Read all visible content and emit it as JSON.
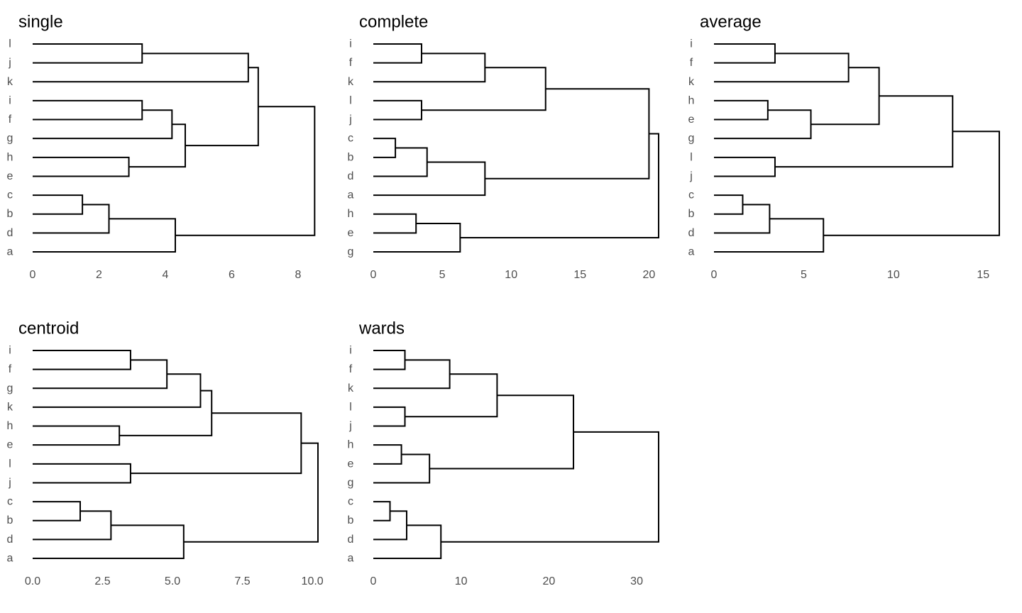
{
  "chart_data": [
    {
      "type": "dendrogram",
      "title": "single",
      "leaves": [
        "l",
        "j",
        "k",
        "i",
        "f",
        "g",
        "h",
        "e",
        "c",
        "b",
        "d",
        "a"
      ],
      "xlim": [
        0,
        8.6
      ],
      "ticks": [
        0,
        2,
        4,
        6,
        8
      ],
      "tick_labels": [
        "0",
        "2",
        "4",
        "6",
        "8"
      ],
      "merges": [
        {
          "a": "L:c",
          "b": "L:b",
          "h": 1.5
        },
        {
          "a": "L:l",
          "b": "L:j",
          "h": 3.3
        },
        {
          "a": "L:i",
          "b": "L:f",
          "h": 3.3
        },
        {
          "a": "L:h",
          "b": "L:e",
          "h": 2.9
        },
        {
          "a": "N:0",
          "b": "L:d",
          "h": 2.3
        },
        {
          "a": "N:2",
          "b": "L:g",
          "h": 4.2
        },
        {
          "a": "N:4",
          "b": "L:a",
          "h": 4.3
        },
        {
          "a": "N:5",
          "b": "N:3",
          "h": 4.6
        },
        {
          "a": "N:1",
          "b": "L:k",
          "h": 6.5
        },
        {
          "a": "N:8",
          "b": "N:7",
          "h": 6.8
        },
        {
          "a": "N:9",
          "b": "N:6",
          "h": 8.5
        }
      ]
    },
    {
      "type": "dendrogram",
      "title": "complete",
      "leaves": [
        "i",
        "f",
        "k",
        "l",
        "j",
        "c",
        "b",
        "d",
        "a",
        "h",
        "e",
        "g"
      ],
      "xlim": [
        0,
        20.7
      ],
      "ticks": [
        0,
        5,
        10,
        15,
        20
      ],
      "tick_labels": [
        "0",
        "5",
        "10",
        "15",
        "20"
      ],
      "merges": [
        {
          "a": "L:c",
          "b": "L:b",
          "h": 1.6
        },
        {
          "a": "L:i",
          "b": "L:f",
          "h": 3.5
        },
        {
          "a": "L:l",
          "b": "L:j",
          "h": 3.5
        },
        {
          "a": "L:h",
          "b": "L:e",
          "h": 3.1
        },
        {
          "a": "N:0",
          "b": "L:d",
          "h": 3.9
        },
        {
          "a": "N:1",
          "b": "L:k",
          "h": 8.1
        },
        {
          "a": "N:4",
          "b": "L:a",
          "h": 8.1
        },
        {
          "a": "N:3",
          "b": "L:g",
          "h": 6.3
        },
        {
          "a": "N:5",
          "b": "N:2",
          "h": 12.5
        },
        {
          "a": "N:8",
          "b": "N:6",
          "h": 20.0
        },
        {
          "a": "N:9",
          "b": "N:7",
          "h": 20.7
        }
      ]
    },
    {
      "type": "dendrogram",
      "title": "average",
      "leaves": [
        "i",
        "f",
        "k",
        "h",
        "e",
        "g",
        "l",
        "j",
        "c",
        "b",
        "d",
        "a"
      ],
      "xlim": [
        0,
        15.9
      ],
      "ticks": [
        0,
        5,
        10,
        15
      ],
      "tick_labels": [
        "0",
        "5",
        "10",
        "15"
      ],
      "merges": [
        {
          "a": "L:c",
          "b": "L:b",
          "h": 1.6
        },
        {
          "a": "L:i",
          "b": "L:f",
          "h": 3.4
        },
        {
          "a": "L:h",
          "b": "L:e",
          "h": 3.0
        },
        {
          "a": "L:l",
          "b": "L:j",
          "h": 3.4
        },
        {
          "a": "N:0",
          "b": "L:d",
          "h": 3.1
        },
        {
          "a": "N:1",
          "b": "L:k",
          "h": 7.5
        },
        {
          "a": "N:2",
          "b": "L:g",
          "h": 5.4
        },
        {
          "a": "N:4",
          "b": "L:a",
          "h": 6.1
        },
        {
          "a": "N:5",
          "b": "N:6",
          "h": 9.2
        },
        {
          "a": "N:8",
          "b": "N:3",
          "h": 13.3
        },
        {
          "a": "N:9",
          "b": "N:7",
          "h": 15.9
        }
      ]
    },
    {
      "type": "dendrogram",
      "title": "centroid",
      "leaves": [
        "i",
        "f",
        "g",
        "k",
        "h",
        "e",
        "l",
        "j",
        "c",
        "b",
        "d",
        "a"
      ],
      "xlim": [
        0,
        10.2
      ],
      "ticks": [
        0,
        2.5,
        5,
        7.5,
        10
      ],
      "tick_labels": [
        "0.0",
        "2.5",
        "5.0",
        "7.5",
        "10.0"
      ],
      "merges": [
        {
          "a": "L:c",
          "b": "L:b",
          "h": 1.7
        },
        {
          "a": "L:i",
          "b": "L:f",
          "h": 3.5
        },
        {
          "a": "L:h",
          "b": "L:e",
          "h": 3.1
        },
        {
          "a": "L:l",
          "b": "L:j",
          "h": 3.5
        },
        {
          "a": "N:0",
          "b": "L:d",
          "h": 2.8
        },
        {
          "a": "N:1",
          "b": "L:g",
          "h": 4.8
        },
        {
          "a": "N:5",
          "b": "L:k",
          "h": 6.0
        },
        {
          "a": "N:6",
          "b": "N:2",
          "h": 6.4
        },
        {
          "a": "N:4",
          "b": "L:a",
          "h": 5.4
        },
        {
          "a": "N:7",
          "b": "N:3",
          "h": 9.6
        },
        {
          "a": "N:9",
          "b": "N:8",
          "h": 10.2
        }
      ]
    },
    {
      "type": "dendrogram",
      "title": "wards",
      "leaves": [
        "i",
        "f",
        "k",
        "l",
        "j",
        "h",
        "e",
        "g",
        "c",
        "b",
        "d",
        "a"
      ],
      "xlim": [
        0,
        32.5
      ],
      "ticks": [
        0,
        10,
        20,
        30
      ],
      "tick_labels": [
        "0",
        "10",
        "20",
        "30"
      ],
      "merges": [
        {
          "a": "L:c",
          "b": "L:b",
          "h": 1.9
        },
        {
          "a": "L:i",
          "b": "L:f",
          "h": 3.6
        },
        {
          "a": "L:l",
          "b": "L:j",
          "h": 3.6
        },
        {
          "a": "L:h",
          "b": "L:e",
          "h": 3.2
        },
        {
          "a": "N:0",
          "b": "L:d",
          "h": 3.8
        },
        {
          "a": "N:1",
          "b": "L:k",
          "h": 8.7
        },
        {
          "a": "N:3",
          "b": "L:g",
          "h": 6.4
        },
        {
          "a": "N:4",
          "b": "L:a",
          "h": 7.7
        },
        {
          "a": "N:5",
          "b": "N:2",
          "h": 14.1
        },
        {
          "a": "N:8",
          "b": "N:6",
          "h": 22.8
        },
        {
          "a": "N:9",
          "b": "N:7",
          "h": 32.5
        }
      ]
    }
  ]
}
